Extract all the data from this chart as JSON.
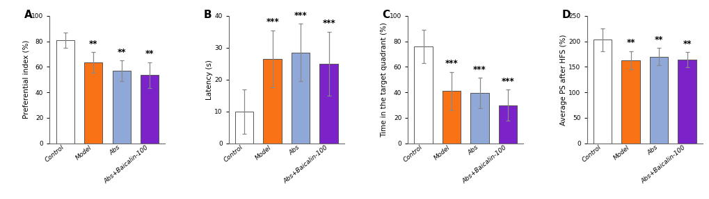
{
  "panels": [
    {
      "label": "A",
      "ylabel": "Preferential index (%)",
      "ylim": [
        0,
        100
      ],
      "yticks": [
        0,
        20,
        40,
        60,
        80,
        100
      ],
      "categories": [
        "Control",
        "Model",
        "Abs",
        "Abs+Baicalin-100"
      ],
      "values": [
        81,
        63.5,
        57,
        53.5
      ],
      "errors": [
        6,
        8,
        8,
        10
      ],
      "bar_colors": [
        "#ffffff",
        "#f97316",
        "#8fa8d8",
        "#7b22c9"
      ],
      "sig_labels": [
        "",
        "**",
        "**",
        "**"
      ]
    },
    {
      "label": "B",
      "ylabel": "Latency (s)",
      "ylim": [
        0,
        40
      ],
      "yticks": [
        0,
        10,
        20,
        30,
        40
      ],
      "categories": [
        "Control",
        "Model",
        "Abs",
        "Abs+Baicalin-100"
      ],
      "values": [
        10,
        26.5,
        28.5,
        25
      ],
      "errors": [
        7,
        9,
        9,
        10
      ],
      "bar_colors": [
        "#ffffff",
        "#f97316",
        "#8fa8d8",
        "#7b22c9"
      ],
      "sig_labels": [
        "",
        "***",
        "***",
        "***"
      ]
    },
    {
      "label": "C",
      "ylabel": "Time in the target quadrant (%)",
      "ylim": [
        0,
        100
      ],
      "yticks": [
        0,
        20,
        40,
        60,
        80,
        100
      ],
      "categories": [
        "Control",
        "Model",
        "Abs",
        "Abs+Baicalin-100"
      ],
      "values": [
        76,
        41,
        39.5,
        30
      ],
      "errors": [
        13,
        15,
        12,
        12
      ],
      "bar_colors": [
        "#ffffff",
        "#f97316",
        "#8fa8d8",
        "#7b22c9"
      ],
      "sig_labels": [
        "",
        "***",
        "***",
        "***"
      ]
    },
    {
      "label": "D",
      "ylabel": "Average PS after HFS (%)",
      "ylim": [
        0,
        250
      ],
      "yticks": [
        0,
        50,
        100,
        150,
        200,
        250
      ],
      "categories": [
        "Control",
        "Model",
        "Abs",
        "Abs+Baicalin-100"
      ],
      "values": [
        203,
        163,
        170,
        164
      ],
      "errors": [
        22,
        18,
        17,
        15
      ],
      "bar_colors": [
        "#ffffff",
        "#f97316",
        "#8fa8d8",
        "#7b22c9"
      ],
      "sig_labels": [
        "",
        "**",
        "**",
        "**"
      ]
    }
  ],
  "bar_width": 0.65,
  "edge_color": "#555555",
  "edge_width": 0.7,
  "sig_fontsize": 8.5,
  "ylabel_fontsize": 7.5,
  "tick_fontsize": 6.5,
  "panel_label_fontsize": 11,
  "xlabel_rotation": 40,
  "figure_bg": "#ffffff",
  "error_cap": 2.5,
  "error_linewidth": 0.9,
  "error_color": "#888888"
}
